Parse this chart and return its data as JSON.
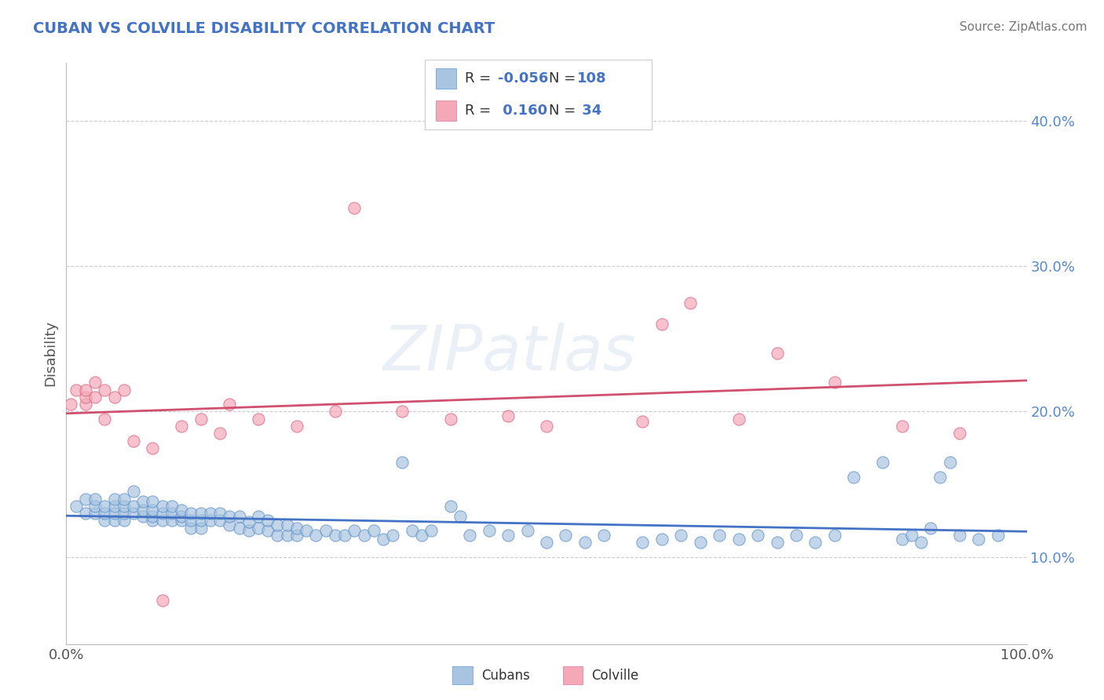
{
  "title": "CUBAN VS COLVILLE DISABILITY CORRELATION CHART",
  "source": "Source: ZipAtlas.com",
  "ylabel": "Disability",
  "watermark": "ZIPatlas",
  "xlim": [
    0.0,
    1.0
  ],
  "ylim": [
    0.04,
    0.44
  ],
  "yticks": [
    0.1,
    0.2,
    0.3,
    0.4
  ],
  "ytick_labels": [
    "10.0%",
    "20.0%",
    "30.0%",
    "40.0%"
  ],
  "xtick_labels": [
    "0.0%",
    "100.0%"
  ],
  "legend_R_cubans": "-0.056",
  "legend_N_cubans": "108",
  "legend_R_colville": "0.160",
  "legend_N_colville": "34",
  "cubans_color": "#a8c4e0",
  "cubans_edge_color": "#5b8fc7",
  "colville_color": "#f4a8b8",
  "colville_edge_color": "#d96080",
  "cubans_line_color": "#4472c4",
  "colville_line_color": "#d05070",
  "title_color": "#4472c4",
  "label_color": "#4472c4",
  "background_color": "#ffffff",
  "grid_color": "#cccccc",
  "cubans_x": [
    0.01,
    0.02,
    0.02,
    0.03,
    0.03,
    0.03,
    0.04,
    0.04,
    0.04,
    0.05,
    0.05,
    0.05,
    0.05,
    0.06,
    0.06,
    0.06,
    0.06,
    0.07,
    0.07,
    0.07,
    0.08,
    0.08,
    0.08,
    0.09,
    0.09,
    0.09,
    0.09,
    0.1,
    0.1,
    0.1,
    0.11,
    0.11,
    0.11,
    0.12,
    0.12,
    0.12,
    0.13,
    0.13,
    0.13,
    0.14,
    0.14,
    0.14,
    0.15,
    0.15,
    0.16,
    0.16,
    0.17,
    0.17,
    0.18,
    0.18,
    0.19,
    0.19,
    0.2,
    0.2,
    0.21,
    0.21,
    0.22,
    0.22,
    0.23,
    0.23,
    0.24,
    0.24,
    0.25,
    0.26,
    0.27,
    0.28,
    0.29,
    0.3,
    0.31,
    0.32,
    0.33,
    0.34,
    0.35,
    0.36,
    0.37,
    0.38,
    0.4,
    0.41,
    0.42,
    0.44,
    0.46,
    0.48,
    0.5,
    0.52,
    0.54,
    0.56,
    0.6,
    0.62,
    0.64,
    0.66,
    0.68,
    0.7,
    0.72,
    0.74,
    0.76,
    0.78,
    0.8,
    0.82,
    0.85,
    0.87,
    0.88,
    0.89,
    0.9,
    0.91,
    0.92,
    0.93,
    0.95,
    0.97
  ],
  "cubans_y": [
    0.135,
    0.13,
    0.14,
    0.13,
    0.135,
    0.14,
    0.125,
    0.13,
    0.135,
    0.125,
    0.13,
    0.135,
    0.14,
    0.125,
    0.13,
    0.135,
    0.14,
    0.13,
    0.135,
    0.145,
    0.128,
    0.132,
    0.138,
    0.125,
    0.128,
    0.132,
    0.138,
    0.125,
    0.13,
    0.135,
    0.125,
    0.13,
    0.135,
    0.125,
    0.128,
    0.132,
    0.12,
    0.125,
    0.13,
    0.12,
    0.125,
    0.13,
    0.125,
    0.13,
    0.125,
    0.13,
    0.122,
    0.128,
    0.12,
    0.128,
    0.118,
    0.124,
    0.12,
    0.128,
    0.118,
    0.125,
    0.115,
    0.122,
    0.115,
    0.122,
    0.115,
    0.12,
    0.118,
    0.115,
    0.118,
    0.115,
    0.115,
    0.118,
    0.115,
    0.118,
    0.112,
    0.115,
    0.165,
    0.118,
    0.115,
    0.118,
    0.135,
    0.128,
    0.115,
    0.118,
    0.115,
    0.118,
    0.11,
    0.115,
    0.11,
    0.115,
    0.11,
    0.112,
    0.115,
    0.11,
    0.115,
    0.112,
    0.115,
    0.11,
    0.115,
    0.11,
    0.115,
    0.155,
    0.165,
    0.112,
    0.115,
    0.11,
    0.12,
    0.155,
    0.165,
    0.115,
    0.112,
    0.115
  ],
  "colville_x": [
    0.005,
    0.01,
    0.02,
    0.02,
    0.02,
    0.03,
    0.03,
    0.04,
    0.04,
    0.05,
    0.06,
    0.07,
    0.09,
    0.1,
    0.12,
    0.14,
    0.16,
    0.17,
    0.2,
    0.24,
    0.28,
    0.3,
    0.35,
    0.4,
    0.46,
    0.5,
    0.6,
    0.62,
    0.65,
    0.7,
    0.74,
    0.8,
    0.87,
    0.93
  ],
  "colville_y": [
    0.205,
    0.215,
    0.205,
    0.21,
    0.215,
    0.21,
    0.22,
    0.195,
    0.215,
    0.21,
    0.215,
    0.18,
    0.175,
    0.07,
    0.19,
    0.195,
    0.185,
    0.205,
    0.195,
    0.19,
    0.2,
    0.34,
    0.2,
    0.195,
    0.197,
    0.19,
    0.193,
    0.26,
    0.275,
    0.195,
    0.24,
    0.22,
    0.19,
    0.185
  ]
}
